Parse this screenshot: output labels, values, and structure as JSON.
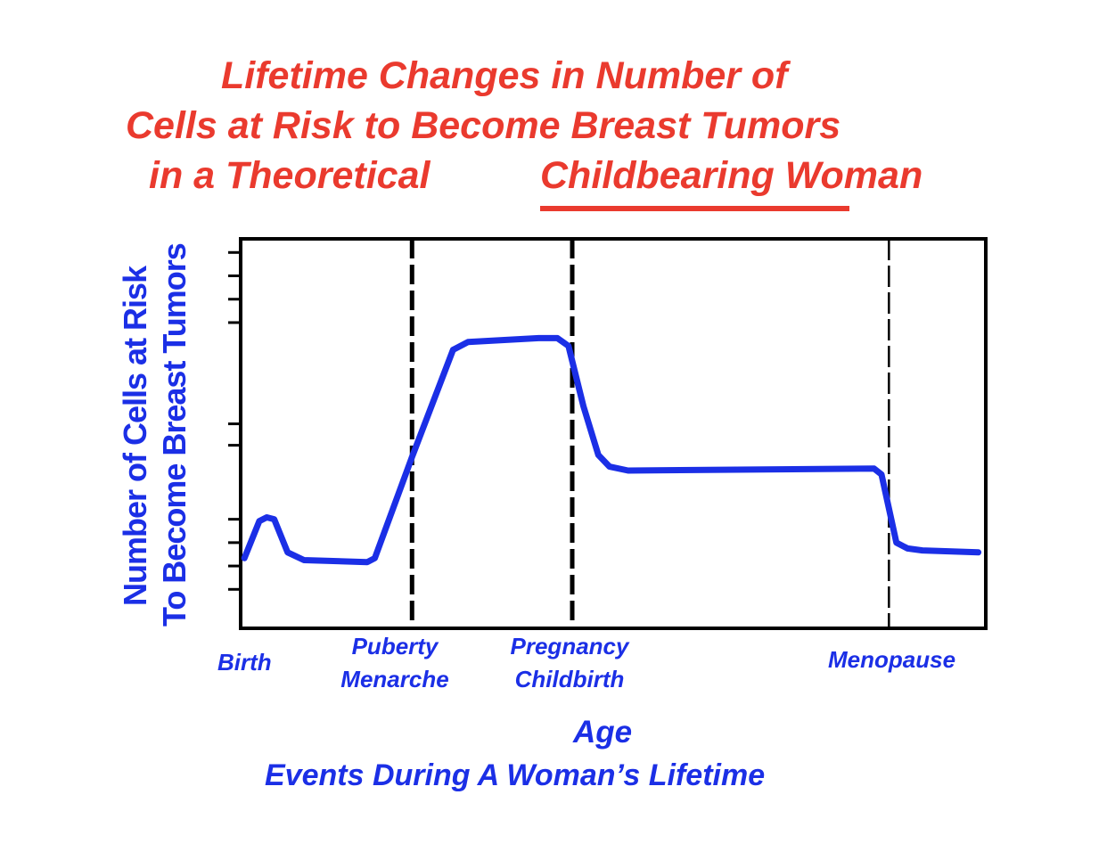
{
  "title": {
    "line1": "Lifetime Changes in Number of",
    "line2": "Cells at Risk to Become Breast Tumors",
    "line3_part1": "in a Theoretical",
    "line3_part2": "Childbearing Woman"
  },
  "colors": {
    "title": "#ea3a2e",
    "series": "#1b2fe6",
    "axis": "#000000"
  },
  "chart_data": {
    "type": "line",
    "title": "Lifetime Changes in Number of Cells at Risk to Become Breast Tumors in a Theoretical Childbearing Woman",
    "ylabel_lines": [
      "Number of Cells at Risk",
      "To Become Breast Tumors"
    ],
    "xlabel_lines": [
      "Age",
      "Events During A Woman’s Lifetime"
    ],
    "xlim": [
      0,
      100
    ],
    "ylim": [
      0,
      100
    ],
    "grid": false,
    "y_ticks": [
      10,
      16,
      22,
      28,
      47,
      52.5,
      78.5,
      84.5,
      90.5,
      96.5
    ],
    "events": [
      {
        "name": "Birth",
        "label": "Birth",
        "x": 0.5,
        "line": "none"
      },
      {
        "name": "puberty",
        "label": "Puberty\nMenarche",
        "x": 23,
        "line": "thick"
      },
      {
        "name": "pregnancy",
        "label": "Pregnancy\nChildbirth",
        "x": 44.5,
        "line": "thick"
      },
      {
        "name": "menopause",
        "label": "Menopause",
        "x": 87,
        "line": "thin"
      }
    ],
    "series": [
      {
        "values_x": [
          0.5,
          2.5,
          3.5,
          4.5,
          6.3,
          8.5,
          17,
          18,
          23,
          28.5,
          30.5,
          40,
          42.5,
          44,
          46,
          48,
          49.5,
          52,
          85,
          86,
          88,
          89.5,
          91.5,
          99
        ],
        "values_y": [
          18,
          27.5,
          28.5,
          28,
          19.5,
          17.5,
          17,
          18,
          44,
          71.5,
          73.5,
          74.5,
          74.5,
          72.5,
          57,
          44.5,
          41.5,
          40.5,
          41,
          39.5,
          22,
          20.5,
          20,
          19.5
        ]
      }
    ]
  }
}
